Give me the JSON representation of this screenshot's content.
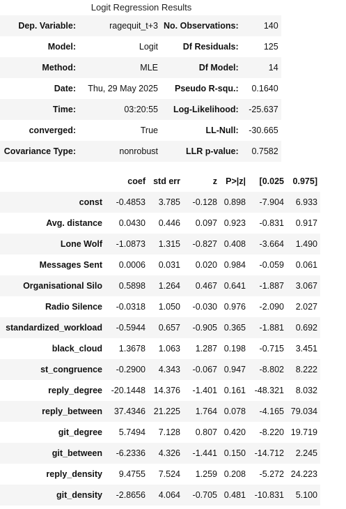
{
  "caption": "Logit Regression Results",
  "summary": [
    {
      "k1": "Dep. Variable:",
      "v1": "ragequit_t+3",
      "k2": "No. Observations:",
      "v2": "140"
    },
    {
      "k1": "Model:",
      "v1": "Logit",
      "k2": "Df Residuals:",
      "v2": "125"
    },
    {
      "k1": "Method:",
      "v1": "MLE",
      "k2": "Df Model:",
      "v2": "14"
    },
    {
      "k1": "Date:",
      "v1": "Thu, 29 May 2025",
      "k2": "Pseudo R-squ.:",
      "v2": "0.1640"
    },
    {
      "k1": "Time:",
      "v1": "03:20:55",
      "k2": "Log-Likelihood:",
      "v2": "-25.637"
    },
    {
      "k1": "converged:",
      "v1": "True",
      "k2": "LL-Null:",
      "v2": "-30.665"
    },
    {
      "k1": "Covariance Type:",
      "v1": "nonrobust",
      "k2": "LLR p-value:",
      "v2": "0.7582"
    }
  ],
  "coef_headers": [
    "",
    "coef",
    "std err",
    "z",
    "P>|z|",
    "[0.025",
    "0.975]"
  ],
  "coef_rows": [
    {
      "name": "const",
      "coef": "-0.4853",
      "se": "3.785",
      "z": "-0.128",
      "p": "0.898",
      "lo": "-7.904",
      "hi": "6.933"
    },
    {
      "name": "Avg. distance",
      "coef": "0.0430",
      "se": "0.446",
      "z": "0.097",
      "p": "0.923",
      "lo": "-0.831",
      "hi": "0.917"
    },
    {
      "name": "Lone Wolf",
      "coef": "-1.0873",
      "se": "1.315",
      "z": "-0.827",
      "p": "0.408",
      "lo": "-3.664",
      "hi": "1.490"
    },
    {
      "name": "Messages Sent",
      "coef": "0.0006",
      "se": "0.031",
      "z": "0.020",
      "p": "0.984",
      "lo": "-0.059",
      "hi": "0.061"
    },
    {
      "name": "Organisational Silo",
      "coef": "0.5898",
      "se": "1.264",
      "z": "0.467",
      "p": "0.641",
      "lo": "-1.887",
      "hi": "3.067"
    },
    {
      "name": "Radio Silence",
      "coef": "-0.0318",
      "se": "1.050",
      "z": "-0.030",
      "p": "0.976",
      "lo": "-2.090",
      "hi": "2.027"
    },
    {
      "name": "standardized_workload",
      "coef": "-0.5944",
      "se": "0.657",
      "z": "-0.905",
      "p": "0.365",
      "lo": "-1.881",
      "hi": "0.692"
    },
    {
      "name": "black_cloud",
      "coef": "1.3678",
      "se": "1.063",
      "z": "1.287",
      "p": "0.198",
      "lo": "-0.715",
      "hi": "3.451"
    },
    {
      "name": "st_congruence",
      "coef": "-0.2900",
      "se": "4.343",
      "z": "-0.067",
      "p": "0.947",
      "lo": "-8.802",
      "hi": "8.222"
    },
    {
      "name": "reply_degree",
      "coef": "-20.1448",
      "se": "14.376",
      "z": "-1.401",
      "p": "0.161",
      "lo": "-48.321",
      "hi": "8.032"
    },
    {
      "name": "reply_between",
      "coef": "37.4346",
      "se": "21.225",
      "z": "1.764",
      "p": "0.078",
      "lo": "-4.165",
      "hi": "79.034"
    },
    {
      "name": "git_degree",
      "coef": "5.7494",
      "se": "7.128",
      "z": "0.807",
      "p": "0.420",
      "lo": "-8.220",
      "hi": "19.719"
    },
    {
      "name": "git_between",
      "coef": "-6.2336",
      "se": "4.326",
      "z": "-1.441",
      "p": "0.150",
      "lo": "-14.712",
      "hi": "2.245"
    },
    {
      "name": "reply_density",
      "coef": "9.4755",
      "se": "7.524",
      "z": "1.259",
      "p": "0.208",
      "lo": "-5.272",
      "hi": "24.223"
    },
    {
      "name": "git_density",
      "coef": "-2.8656",
      "se": "4.064",
      "z": "-0.705",
      "p": "0.481",
      "lo": "-10.831",
      "hi": "5.100"
    }
  ]
}
